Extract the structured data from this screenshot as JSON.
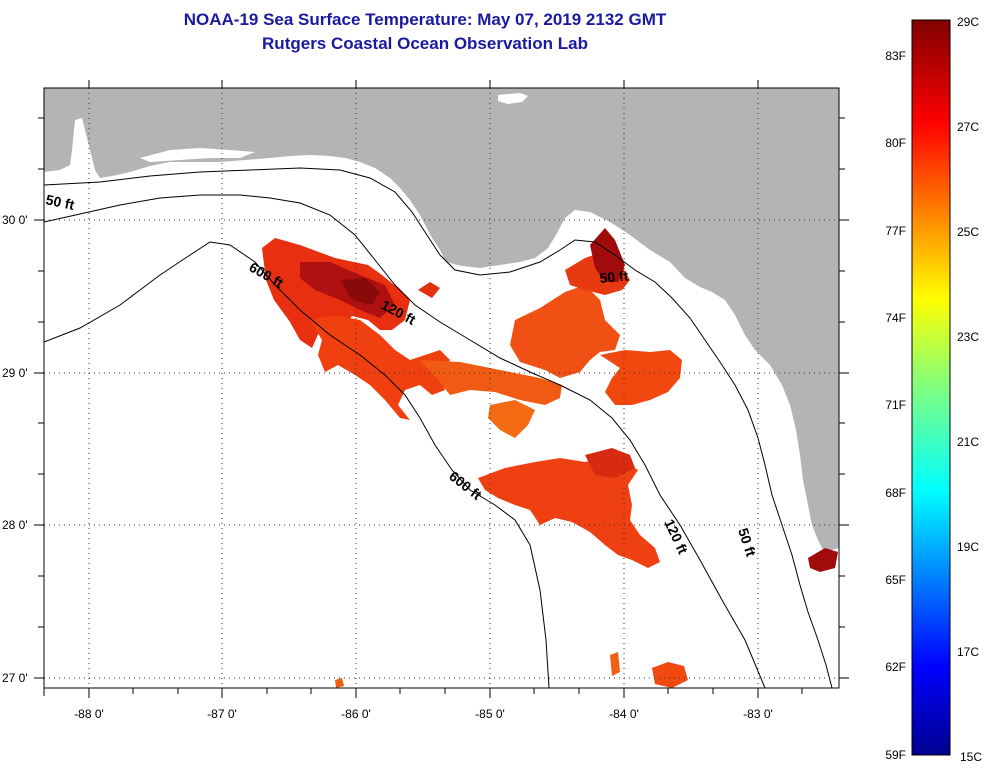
{
  "header": {
    "title_line1": "NOAA-19 Sea Surface Temperature:  May 07, 2019 2132 GMT",
    "title_line2": "Rutgers Coastal Ocean Observation Lab"
  },
  "map": {
    "latitude_labels": [
      "30 0'",
      "29 0'",
      "28 0'",
      "27 0'"
    ],
    "longitude_labels": [
      "-88 0'",
      "-87 0'",
      "-86 0'",
      "-85 0'",
      "-84 0'",
      "-83 0'"
    ],
    "contour_labels": {
      "c50_west": "50 ft",
      "c50_bigbend": "50 ft",
      "c50_south": "50 ft",
      "c120_west": "120 ft",
      "c120_south": "120 ft",
      "c600_north": "600 ft",
      "c600_south": "600 ft"
    },
    "colors": {
      "land": "#b4b4b4",
      "water": "#ffffff",
      "contour": "#000000"
    }
  },
  "colorbar": {
    "fahrenheit_labels": [
      "83F",
      "80F",
      "77F",
      "74F",
      "71F",
      "68F",
      "65F",
      "62F",
      "59F"
    ],
    "celsius_labels": [
      "29C",
      "27C",
      "25C",
      "23C",
      "21C",
      "19C",
      "17C",
      "15C"
    ],
    "range_f": [
      59,
      84.2
    ],
    "range_c": [
      15,
      29
    ]
  }
}
